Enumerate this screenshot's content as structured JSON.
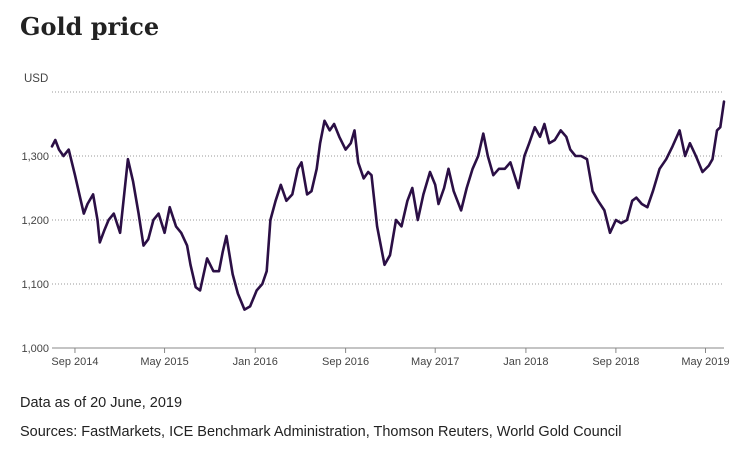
{
  "title": "Gold price",
  "notes": {
    "as_of": "Data as of 20 June, 2019",
    "sources": "Sources: FastMarkets, ICE Benchmark Administration, Thomson Reuters, World Gold Council"
  },
  "chart_data": {
    "type": "line",
    "ylabel": "USD",
    "ylim": [
      1000,
      1400
    ],
    "yticks": [
      1000,
      1100,
      1200,
      1300
    ],
    "ytick_labels": [
      "1,000",
      "1,100",
      "1,200",
      "1,300"
    ],
    "xlim": [
      "2014-07-01",
      "2019-06-20"
    ],
    "xticks": [
      "2014-09-01",
      "2015-05-01",
      "2016-01-01",
      "2016-09-01",
      "2017-05-01",
      "2018-01-01",
      "2018-09-01",
      "2019-05-01"
    ],
    "xtick_labels": [
      "Sep 2014",
      "May 2015",
      "Jan 2016",
      "Sep 2016",
      "May 2017",
      "Jan 2018",
      "Sep 2018",
      "May 2019"
    ],
    "grid": true,
    "legend": "none",
    "line_color": "#2b0f45",
    "series": [
      {
        "x": [
          "2014-07-01",
          "2014-07-10",
          "2014-07-20",
          "2014-08-01",
          "2014-08-15",
          "2014-09-01",
          "2014-09-15",
          "2014-09-25",
          "2014-10-05",
          "2014-10-20",
          "2014-11-01",
          "2014-11-07",
          "2014-11-20",
          "2014-12-01",
          "2014-12-15",
          "2015-01-01",
          "2015-01-10",
          "2015-01-22",
          "2015-02-05",
          "2015-02-20",
          "2015-03-05",
          "2015-03-18",
          "2015-04-01",
          "2015-04-15",
          "2015-05-01",
          "2015-05-15",
          "2015-06-01",
          "2015-06-15",
          "2015-07-01",
          "2015-07-10",
          "2015-07-24",
          "2015-08-05",
          "2015-08-24",
          "2015-09-10",
          "2015-09-25",
          "2015-10-05",
          "2015-10-15",
          "2015-11-01",
          "2015-11-15",
          "2015-12-03",
          "2015-12-18",
          "2016-01-05",
          "2016-01-20",
          "2016-02-01",
          "2016-02-11",
          "2016-02-25",
          "2016-03-10",
          "2016-03-25",
          "2016-04-10",
          "2016-04-25",
          "2016-05-05",
          "2016-05-20",
          "2016-06-01",
          "2016-06-15",
          "2016-06-24",
          "2016-07-06",
          "2016-07-20",
          "2016-08-01",
          "2016-08-15",
          "2016-09-01",
          "2016-09-15",
          "2016-09-25",
          "2016-10-05",
          "2016-10-20",
          "2016-11-01",
          "2016-11-10",
          "2016-11-25",
          "2016-12-15",
          "2016-12-30",
          "2017-01-15",
          "2017-01-30",
          "2017-02-15",
          "2017-02-28",
          "2017-03-15",
          "2017-03-30",
          "2017-04-17",
          "2017-05-01",
          "2017-05-10",
          "2017-05-25",
          "2017-06-06",
          "2017-06-20",
          "2017-07-10",
          "2017-07-25",
          "2017-08-10",
          "2017-08-25",
          "2017-09-08",
          "2017-09-20",
          "2017-10-05",
          "2017-10-20",
          "2017-11-05",
          "2017-11-20",
          "2017-12-12",
          "2017-12-28",
          "2018-01-10",
          "2018-01-25",
          "2018-02-08",
          "2018-02-20",
          "2018-03-05",
          "2018-03-20",
          "2018-04-05",
          "2018-04-20",
          "2018-05-01",
          "2018-05-15",
          "2018-05-30",
          "2018-06-15",
          "2018-06-30",
          "2018-07-15",
          "2018-08-01",
          "2018-08-16",
          "2018-09-01",
          "2018-09-15",
          "2018-10-01",
          "2018-10-15",
          "2018-10-26",
          "2018-11-10",
          "2018-11-25",
          "2018-12-10",
          "2018-12-28",
          "2019-01-15",
          "2019-02-01",
          "2019-02-20",
          "2019-03-07",
          "2019-03-20",
          "2019-04-05",
          "2019-04-23",
          "2019-05-10",
          "2019-05-20",
          "2019-06-01",
          "2019-06-10",
          "2019-06-20"
        ],
        "y": [
          1315,
          1325,
          1310,
          1300,
          1310,
          1270,
          1235,
          1210,
          1225,
          1240,
          1200,
          1165,
          1185,
          1200,
          1210,
          1180,
          1230,
          1295,
          1260,
          1210,
          1160,
          1170,
          1200,
          1210,
          1180,
          1220,
          1190,
          1180,
          1160,
          1130,
          1095,
          1090,
          1140,
          1120,
          1120,
          1150,
          1175,
          1115,
          1085,
          1060,
          1065,
          1090,
          1100,
          1120,
          1200,
          1230,
          1255,
          1230,
          1240,
          1280,
          1290,
          1240,
          1245,
          1280,
          1320,
          1355,
          1340,
          1350,
          1330,
          1310,
          1320,
          1340,
          1290,
          1265,
          1275,
          1270,
          1190,
          1130,
          1145,
          1200,
          1190,
          1230,
          1250,
          1200,
          1240,
          1275,
          1255,
          1225,
          1250,
          1280,
          1245,
          1215,
          1250,
          1280,
          1300,
          1335,
          1300,
          1270,
          1280,
          1280,
          1290,
          1250,
          1300,
          1320,
          1345,
          1330,
          1350,
          1320,
          1325,
          1340,
          1330,
          1310,
          1300,
          1300,
          1295,
          1245,
          1230,
          1215,
          1180,
          1200,
          1195,
          1200,
          1230,
          1235,
          1225,
          1220,
          1245,
          1280,
          1295,
          1315,
          1340,
          1300,
          1320,
          1300,
          1275,
          1285,
          1295,
          1340,
          1345,
          1385
        ]
      }
    ]
  }
}
